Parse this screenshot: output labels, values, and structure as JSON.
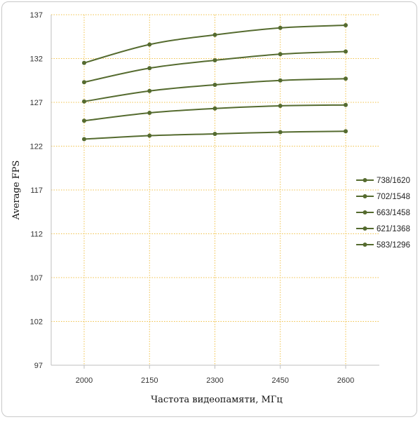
{
  "chart_data": {
    "type": "line",
    "title": "",
    "xlabel": "Частота видеопамяти, МГц",
    "ylabel": "Average FPS",
    "categories": [
      "2000",
      "2150",
      "2300",
      "2450",
      "2600"
    ],
    "yticks": [
      97,
      102,
      107,
      112,
      117,
      122,
      127,
      132,
      137
    ],
    "ylim": [
      97,
      137
    ],
    "grid": "dotted, both axes",
    "legend_position": "right",
    "colors": {
      "series": "#556b2f",
      "grid": "#f0c24a",
      "axis": "#bfbfbf"
    },
    "series": [
      {
        "name": "738/1620",
        "values": [
          131.5,
          133.6,
          134.7,
          135.5,
          135.8
        ]
      },
      {
        "name": "702/1548",
        "values": [
          129.3,
          130.9,
          131.8,
          132.5,
          132.8
        ]
      },
      {
        "name": "663/1458",
        "values": [
          127.1,
          128.3,
          129.0,
          129.5,
          129.7
        ]
      },
      {
        "name": "621/1368",
        "values": [
          124.9,
          125.8,
          126.3,
          126.6,
          126.7
        ]
      },
      {
        "name": "583/1296",
        "values": [
          122.8,
          123.2,
          123.4,
          123.6,
          123.7
        ]
      }
    ]
  }
}
